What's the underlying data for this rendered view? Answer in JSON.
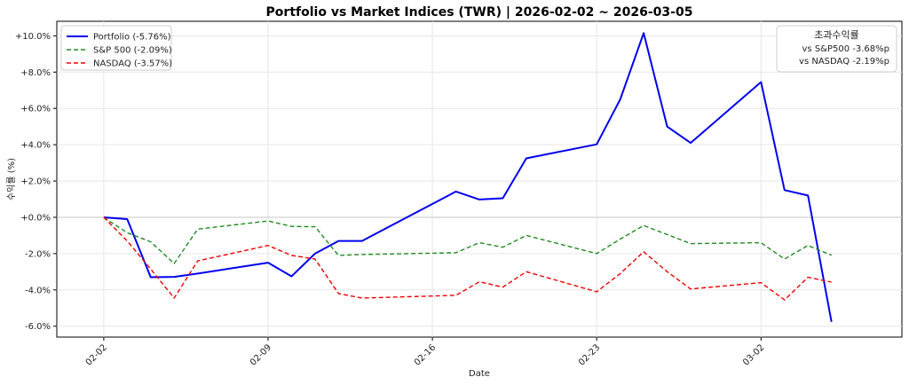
{
  "chart_data": {
    "type": "line",
    "title": "Portfolio vs Market Indices (TWR) | 2026-02-02 ~ 2026-03-05",
    "xlabel": "Date",
    "ylabel": "수익률 (%)",
    "ylim": [
      -6.6,
      10.8
    ],
    "yticks": [
      -6,
      -4,
      -2,
      0,
      2,
      4,
      6,
      8,
      10
    ],
    "ytick_labels": [
      "-6.0%",
      "-4.0%",
      "-2.0%",
      "+0.0%",
      "+2.0%",
      "+4.0%",
      "+6.0%",
      "+8.0%",
      "+10.0%"
    ],
    "xlim": [
      "2026-01-31",
      "2026-03-08"
    ],
    "xticks": [
      "2026-02-02",
      "2026-02-09",
      "2026-02-16",
      "2026-02-23",
      "2026-03-02"
    ],
    "xtick_labels": [
      "02-02",
      "02-09",
      "02-16",
      "02-23",
      "03-02"
    ],
    "grid": true,
    "legend_position": "top-left",
    "x": [
      "2026-02-02",
      "2026-02-03",
      "2026-02-04",
      "2026-02-05",
      "2026-02-06",
      "2026-02-09",
      "2026-02-10",
      "2026-02-11",
      "2026-02-12",
      "2026-02-13",
      "2026-02-17",
      "2026-02-18",
      "2026-02-19",
      "2026-02-20",
      "2026-02-23",
      "2026-02-24",
      "2026-02-25",
      "2026-02-26",
      "2026-02-27",
      "2026-03-02",
      "2026-03-03",
      "2026-03-04",
      "2026-03-05"
    ],
    "series": [
      {
        "name": "Portfolio (-5.76%)",
        "color": "#0000ee",
        "dash": "solid",
        "values": [
          0.0,
          -0.1,
          -3.3,
          -3.28,
          -3.1,
          -2.5,
          -3.25,
          -2.0,
          -1.3,
          -1.3,
          1.42,
          0.98,
          1.05,
          3.25,
          4.02,
          6.5,
          10.15,
          5.0,
          4.1,
          7.45,
          1.5,
          1.2,
          -5.76
        ]
      },
      {
        "name": "S&P 500 (-2.09%)",
        "color": "#228b22",
        "dash": "dashed",
        "values": [
          0.0,
          -0.85,
          -1.35,
          -2.55,
          -0.65,
          -0.2,
          -0.5,
          -0.52,
          -2.1,
          -2.05,
          -1.95,
          -1.4,
          -1.65,
          -1.0,
          -2.0,
          -1.2,
          -0.45,
          -0.95,
          -1.45,
          -1.4,
          -2.3,
          -1.55,
          -2.09
        ]
      },
      {
        "name": "NASDAQ (-3.57%)",
        "color": "#ee0000",
        "dash": "dashed",
        "values": [
          0.0,
          -1.3,
          -2.85,
          -4.45,
          -2.4,
          -1.55,
          -2.1,
          -2.3,
          -4.2,
          -4.45,
          -4.3,
          -3.55,
          -3.85,
          -3.0,
          -4.1,
          -3.1,
          -1.9,
          -3.0,
          -3.95,
          -3.6,
          -4.55,
          -3.3,
          -3.57
        ]
      }
    ],
    "annotation": {
      "title": "초과수익률",
      "lines": [
        "vs S&P500   -3.68%p",
        "vs NASDAQ   -2.19%p"
      ]
    }
  }
}
